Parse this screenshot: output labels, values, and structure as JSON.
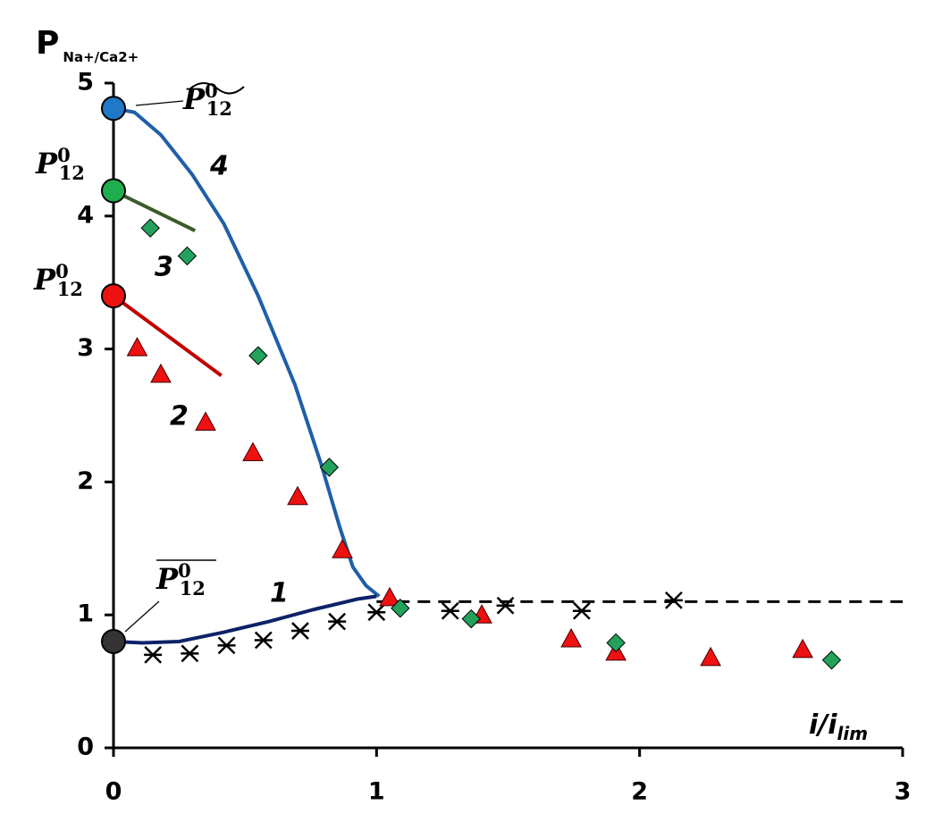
{
  "chart_data": {
    "type": "scatter",
    "ylabel": {
      "main": "P",
      "sub": "Na+/Ca2+"
    },
    "xlabel": {
      "main": "i/i",
      "sub": "lim"
    },
    "xlim": [
      0,
      3
    ],
    "ylim": [
      0,
      5
    ],
    "xticks": [
      0,
      1,
      2,
      3
    ],
    "yticks": [
      0,
      1,
      2,
      3,
      4,
      5
    ],
    "grid": false,
    "series": [
      {
        "name": "4",
        "kind": "line",
        "color": "#1f5fa8",
        "x": [
          0,
          0.08,
          0.18,
          0.3,
          0.42,
          0.55,
          0.69,
          0.79,
          0.86,
          0.91,
          0.96,
          1.01
        ],
        "values": [
          4.81,
          4.78,
          4.61,
          4.31,
          3.94,
          3.4,
          2.73,
          2.13,
          1.66,
          1.36,
          1.22,
          1.14
        ]
      },
      {
        "name": "3",
        "kind": "line",
        "color": "#3d5a2a",
        "x": [
          0,
          0.31
        ],
        "values": [
          4.19,
          3.89
        ]
      },
      {
        "name": "2",
        "kind": "line",
        "color": "#c00000",
        "x": [
          0,
          0.41
        ],
        "values": [
          3.4,
          2.8
        ]
      },
      {
        "name": "1",
        "kind": "line",
        "color": "#0d2266",
        "x": [
          0,
          0.11,
          0.25,
          0.42,
          0.59,
          0.76,
          0.93,
          1.0
        ],
        "values": [
          0.8,
          0.79,
          0.8,
          0.87,
          0.95,
          1.04,
          1.12,
          1.14
        ]
      },
      {
        "kind": "dashed",
        "color": "#000",
        "x": [
          1.0,
          3.0
        ],
        "values": [
          1.1,
          1.1
        ]
      },
      {
        "kind": "points",
        "marker": "cross",
        "color": "#000",
        "x": [
          0.15,
          0.29,
          0.43,
          0.57,
          0.71,
          0.85,
          1.0,
          1.28,
          1.49,
          1.78,
          2.13
        ],
        "values": [
          0.7,
          0.71,
          0.77,
          0.81,
          0.88,
          0.95,
          1.02,
          1.03,
          1.07,
          1.03,
          1.11
        ]
      },
      {
        "kind": "points",
        "marker": "triangle",
        "color": "#ee1111",
        "x": [
          0.09,
          0.18,
          0.35,
          0.53,
          0.7,
          0.87,
          1.05,
          1.4,
          1.74,
          1.91,
          2.27,
          2.62
        ],
        "values": [
          3.01,
          2.81,
          2.45,
          2.22,
          1.89,
          1.49,
          1.13,
          1.0,
          0.82,
          0.72,
          0.68,
          0.74
        ]
      },
      {
        "kind": "points",
        "marker": "diamond",
        "color": "#22a25a",
        "x": [
          0.14,
          0.28,
          0.55,
          0.82,
          1.09,
          1.36,
          1.91,
          2.73
        ],
        "values": [
          3.91,
          3.7,
          2.95,
          2.11,
          1.05,
          0.97,
          0.79,
          0.66
        ]
      },
      {
        "kind": "points",
        "marker": "circle",
        "colors": [
          "#1f78c8",
          "#1fae4f",
          "#ee1111",
          "#333333"
        ],
        "x": [
          0,
          0,
          0,
          0
        ],
        "values": [
          4.81,
          4.19,
          3.4,
          0.8
        ]
      }
    ],
    "annotations": [
      {
        "text": "P",
        "sup": "0",
        "sub": "12",
        "accent": "tilde"
      },
      {
        "text": "P",
        "sup": "0",
        "sub": "12",
        "accent": "none"
      },
      {
        "text": "P",
        "sup": "0",
        "sub": "12",
        "accent": "none"
      },
      {
        "text": "P",
        "sup": "0",
        "sub": "12",
        "accent": "overline"
      }
    ]
  }
}
